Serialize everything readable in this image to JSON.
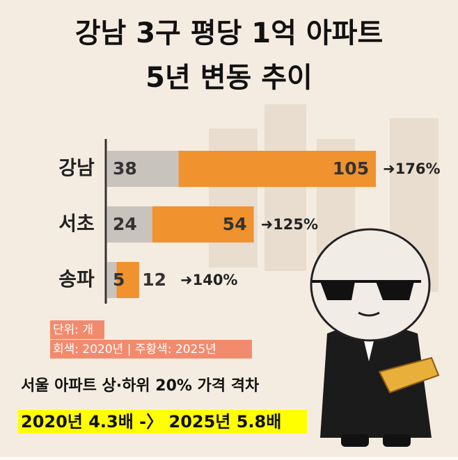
{
  "chart_data": {
    "type": "bar",
    "title": [
      "강남 3구 평당 1억 아파트",
      "5년 변동 추이"
    ],
    "categories": [
      "강남",
      "서초",
      "송파"
    ],
    "series": [
      {
        "color": "#c9c3bd",
        "values": [
          38,
          24,
          5
        ]
      },
      {
        "color": "#f0922e",
        "values": [
          105,
          54,
          12
        ]
      }
    ],
    "change_labels": [
      "➜176%",
      "➜125%",
      "➜140%"
    ],
    "notes": [
      "단위: 개",
      "회색: 2020년 | 주황색: 2025년"
    ],
    "subtitle": "서울 아파트 상·하위 20% 가격 격차",
    "highlight": "2020년 4.3배 -〉 2025년 5.8배"
  }
}
